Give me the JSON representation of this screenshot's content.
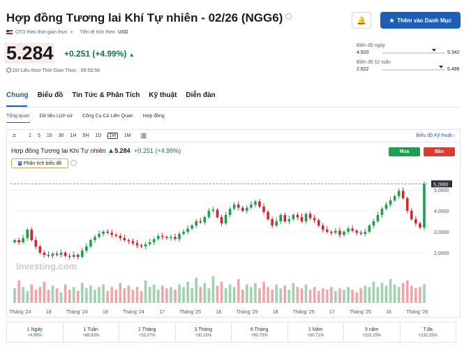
{
  "header": {
    "title": "Hợp đồng Tương lai Khí Tự nhiên - 02/26 (NGG6)",
    "cfd_label": "CFD theo thời gian thực",
    "currency_label": "Tiền tệ tính theo",
    "currency": "USD",
    "price": "5.284",
    "change": "+0.251 (+4.99%)",
    "realtime_label": "Dữ Liệu theo Thời Gian Thực · 09:56:58",
    "watchlist_button": "Thêm vào Danh Mục"
  },
  "ranges": {
    "day": {
      "label": "Biên độ ngày",
      "low": "4.920",
      "high": "5.342",
      "position": 0.82
    },
    "week52": {
      "label": "Biên độ 52 tuần",
      "low": "2.622",
      "high": "5.496",
      "position": 0.93
    }
  },
  "tabs": [
    "Chung",
    "Biểu đồ",
    "Tin Tức & Phân Tích",
    "Kỹ thuật",
    "Diễn đàn"
  ],
  "subtabs": [
    "Tổng quan",
    "Dữ liệu Lịch sử",
    "Công Cụ Có Liên Quan",
    "Hợp đồng"
  ],
  "toolbar": {
    "timeframes": [
      "1",
      "5",
      "15",
      "30",
      "1H",
      "5H",
      "1D",
      "1W",
      "1M"
    ],
    "active": "1W",
    "technical_link": "Biểu đồ Kỹ thuật ›"
  },
  "chart_header": {
    "name": "Hợp đồng Tương lai Khí Tự nhiên",
    "price": "5.284",
    "change": "+0.251 (+4.99%)",
    "buy_label": "Mua",
    "sell_label": "Bán",
    "analysis_label": "Phân tích biểu đồ",
    "watermark": "Investing.com"
  },
  "chart_data": {
    "type": "candlestick",
    "current_price_label": "5,2860",
    "current_price": 5.286,
    "y_ticks": [
      "5,0000",
      "4,0000",
      "3,0000",
      "2,0000"
    ],
    "y_tick_values": [
      5,
      4,
      3,
      2
    ],
    "ylim": [
      1.2,
      5.7
    ],
    "x_ticks": [
      "Tháng '24",
      "18",
      "Tháng '24",
      "19",
      "Tháng '24",
      "17",
      "Tháng '25",
      "16",
      "Tháng '25",
      "18",
      "Tháng '25",
      "17",
      "Tháng '25",
      "16",
      "Tháng '26"
    ],
    "closes": [
      2.6,
      2.5,
      2.7,
      3.1,
      2.6,
      2.3,
      2.0,
      1.9,
      1.85,
      1.95,
      1.9,
      2.0,
      1.85,
      1.8,
      1.9,
      1.8,
      2.1,
      2.3,
      2.6,
      2.75,
      2.9,
      3.0,
      2.95,
      2.85,
      2.8,
      2.7,
      2.6,
      2.55,
      2.45,
      2.35,
      2.3,
      2.4,
      2.5,
      2.65,
      2.8,
      2.75,
      2.7,
      2.75,
      2.65,
      2.9,
      3.0,
      3.15,
      3.3,
      3.5,
      3.45,
      3.7,
      4.0,
      4.05,
      3.7,
      3.4,
      3.8,
      4.1,
      4.3,
      4.15,
      4.0,
      4.15,
      4.3,
      4.45,
      4.2,
      3.95,
      3.6,
      3.3,
      3.5,
      3.8,
      3.5,
      3.6,
      3.8,
      3.7,
      3.5,
      3.85,
      3.65,
      3.55,
      3.3,
      3.1,
      3.0,
      2.95,
      3.05,
      2.85,
      3.0,
      3.15,
      3.05,
      2.95,
      2.9,
      3.0,
      3.3,
      3.5,
      3.8,
      4.1,
      4.3,
      4.5,
      4.7,
      4.95,
      4.6,
      4.0,
      3.6,
      3.4,
      3.2,
      5.28
    ],
    "volumes": [
      0.55,
      0.85,
      0.6,
      0.45,
      0.7,
      0.5,
      0.6,
      0.8,
      0.5,
      0.65,
      0.55,
      0.4,
      0.7,
      0.5,
      0.6,
      0.45,
      0.75,
      0.55,
      0.65,
      0.5,
      0.6,
      0.7,
      0.45,
      0.6,
      0.5,
      0.75,
      0.55,
      0.65,
      0.5,
      0.6,
      0.45,
      0.85,
      0.6,
      0.7,
      0.5,
      0.65,
      0.55,
      0.6,
      0.5,
      0.7,
      0.6,
      0.8,
      0.55,
      0.95,
      0.6,
      0.75,
      0.55,
      1.0,
      0.65,
      0.8,
      0.55,
      0.7,
      0.6,
      0.9,
      0.5,
      0.7,
      0.6,
      0.75,
      0.55,
      0.8,
      0.6,
      0.5,
      0.7,
      0.55,
      0.65,
      0.5,
      0.75,
      0.6,
      0.55,
      0.7,
      0.5,
      0.6,
      0.45,
      0.55,
      0.5,
      0.6,
      0.45,
      0.55,
      0.5,
      0.6,
      0.5,
      0.4,
      0.55,
      0.65,
      0.6,
      0.8,
      0.6,
      0.75,
      0.65,
      0.9,
      0.7,
      0.6,
      0.75,
      0.85,
      0.65,
      0.55,
      0.6,
      0.7
    ]
  },
  "performance": [
    {
      "label": "1 Ngày",
      "value": "+4.99%"
    },
    {
      "label": "1 Tuần",
      "value": "+68.93%"
    },
    {
      "label": "1 Tháng",
      "value": "+33.27%"
    },
    {
      "label": "3 Tháng",
      "value": "+30.15%"
    },
    {
      "label": "6 Tháng",
      "value": "+60.75%"
    },
    {
      "label": "1 Năm",
      "value": "+50.71%"
    },
    {
      "label": "5 năm",
      "value": "+115.15%"
    },
    {
      "label": "T.đa",
      "value": "+232.33%"
    }
  ],
  "colors": {
    "up": "#1aa34a",
    "down": "#d4262f",
    "vol_up": "#9fd3b0",
    "vol_down": "#f0a6a8",
    "accent": "#1c5fb6"
  }
}
